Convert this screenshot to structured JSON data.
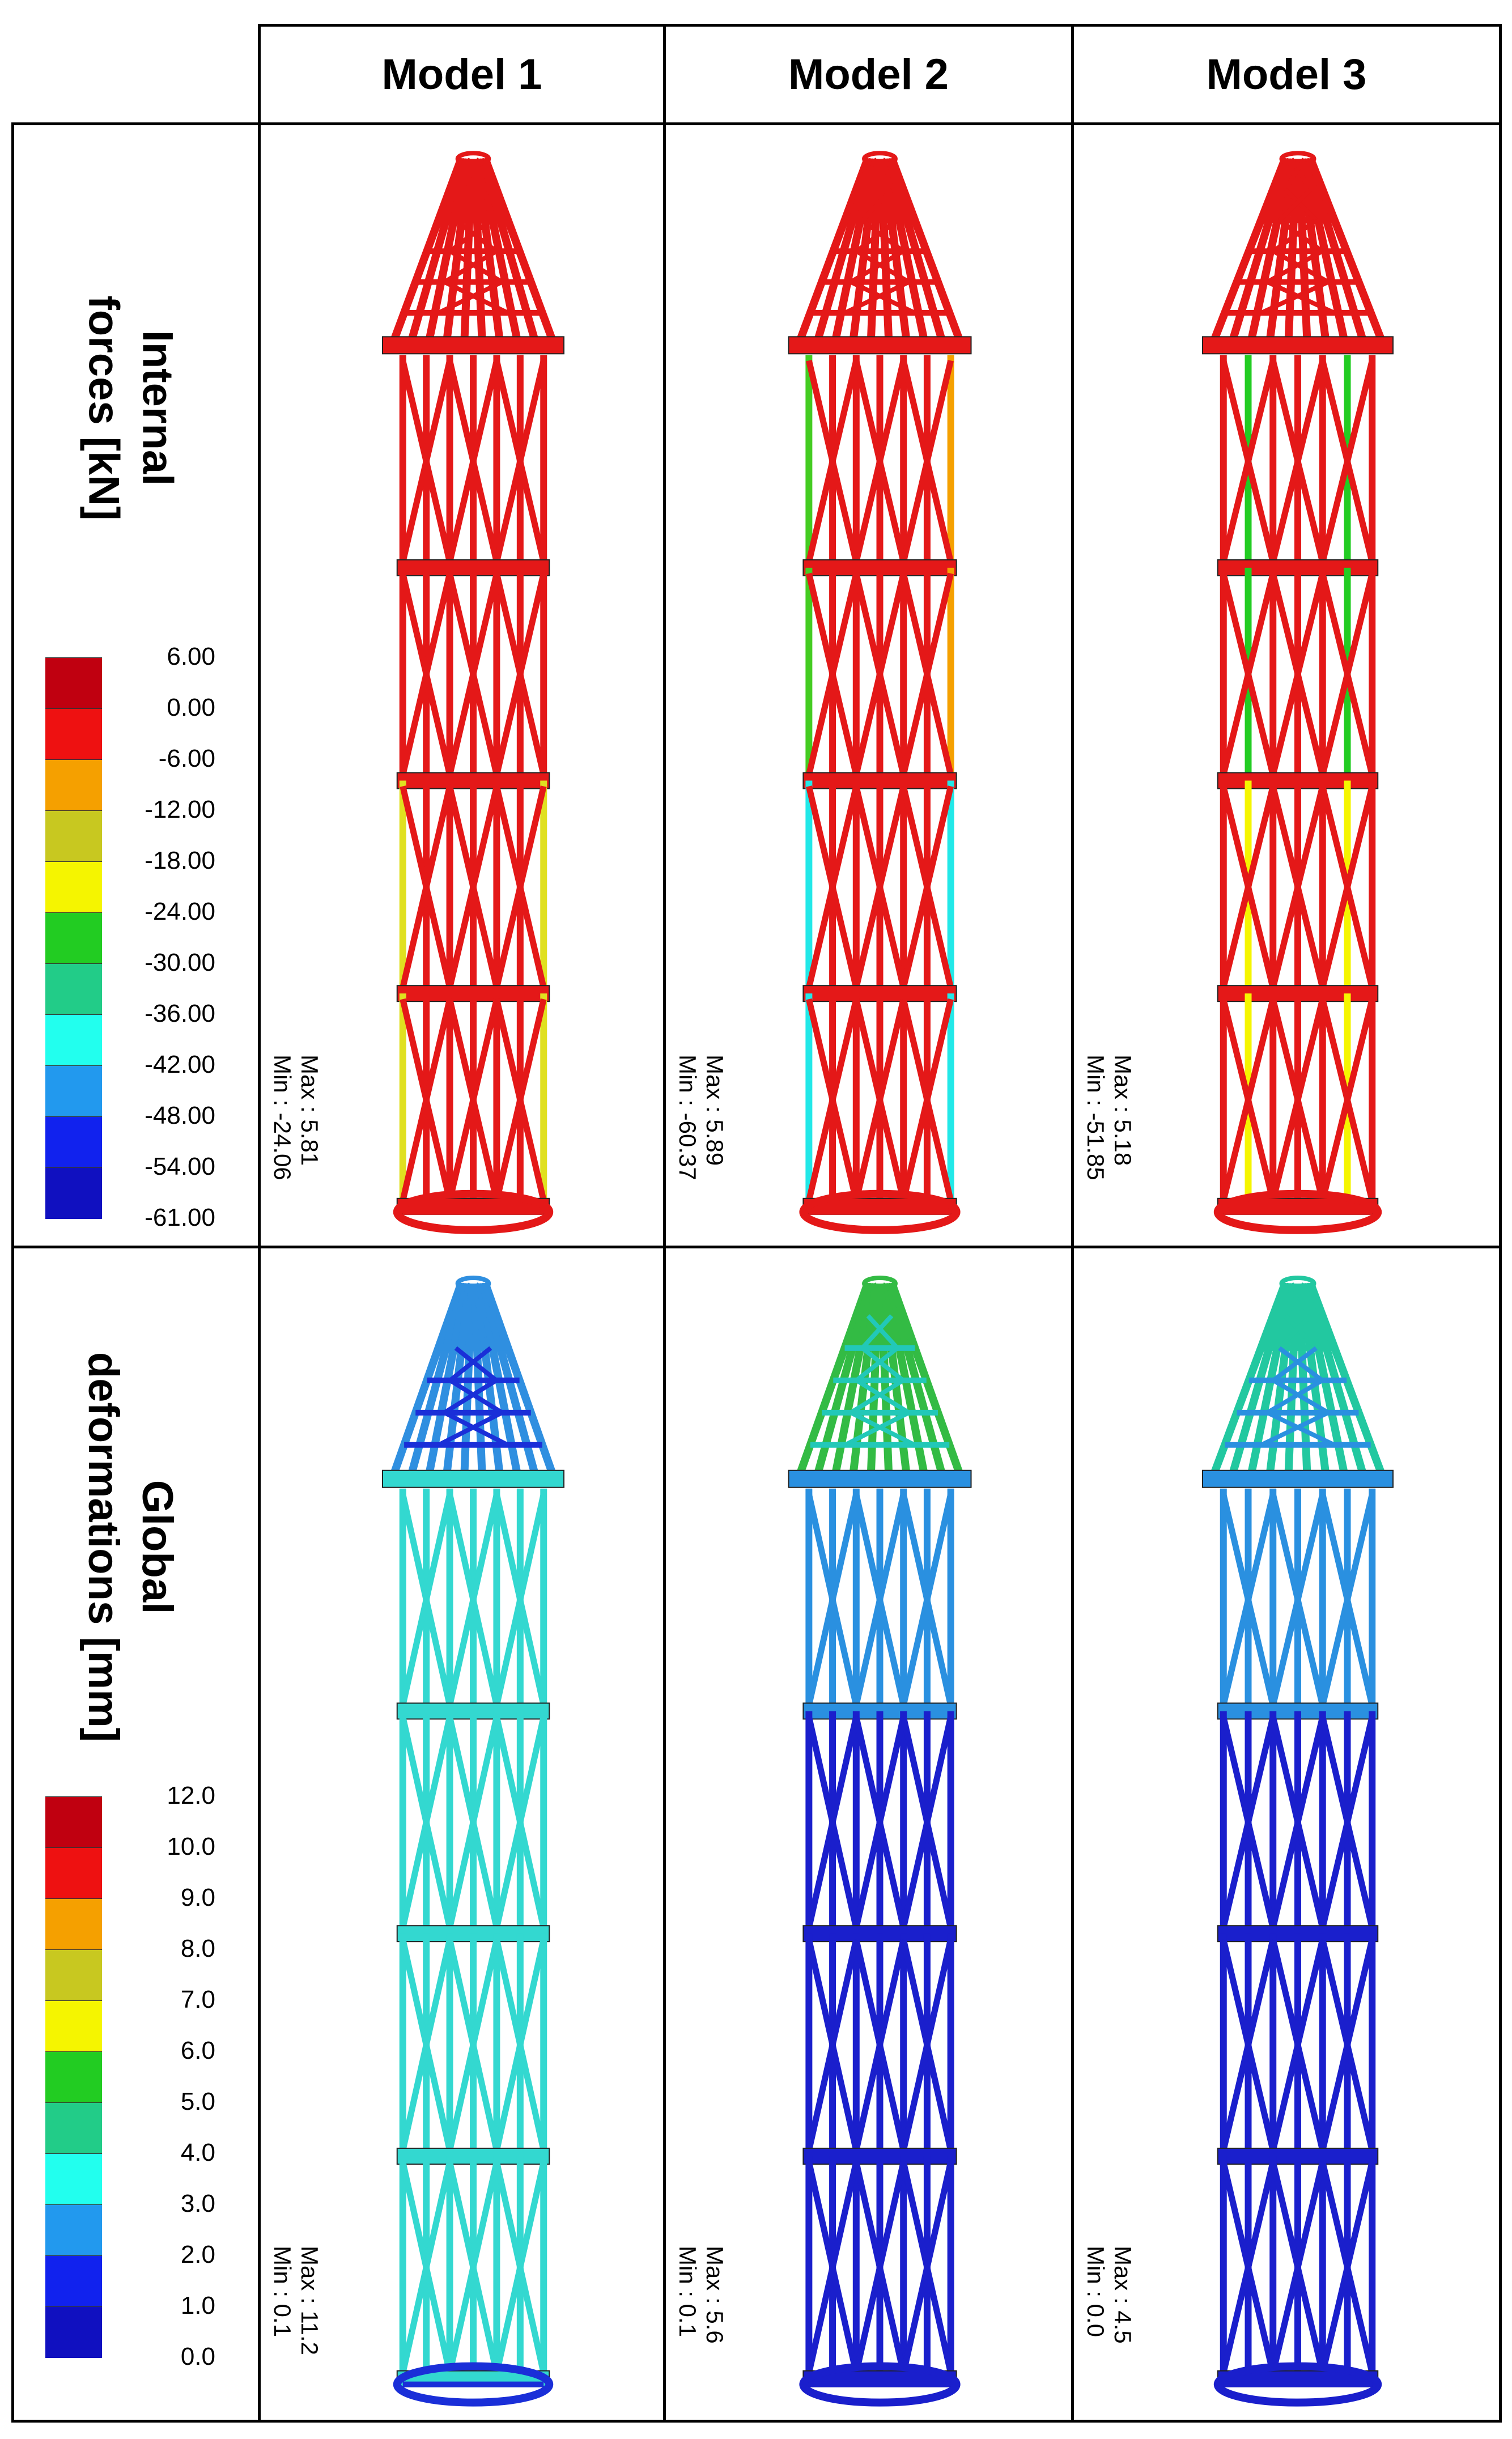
{
  "headers": {
    "model1": "Model 1",
    "model2": "Model 2",
    "model3": "Model 3"
  },
  "rows": {
    "forces": {
      "label_line1": "Internal",
      "label_line2": "forces [kN]"
    },
    "deformations": {
      "label_line1": "Global",
      "label_line2": "deformations [mm]"
    }
  },
  "legends": {
    "forces": {
      "values": [
        "6.00",
        "0.00",
        "-6.00",
        "-12.00",
        "-18.00",
        "-24.00",
        "-30.00",
        "-36.00",
        "-42.00",
        "-48.00",
        "-54.00",
        "-61.00"
      ],
      "colors": [
        "#c00010",
        "#ee1111",
        "#f5a000",
        "#c8c820",
        "#f5f500",
        "#22cc22",
        "#22cc88",
        "#22ffee",
        "#2299ee",
        "#1122ee",
        "#1010c0"
      ]
    },
    "deformations": {
      "values": [
        "12.0",
        "10.0",
        "9.0",
        "8.0",
        "7.0",
        "6.0",
        "5.0",
        "4.0",
        "3.0",
        "2.0",
        "1.0",
        "0.0"
      ],
      "colors": [
        "#c00010",
        "#ee1111",
        "#f5a000",
        "#c8c820",
        "#f5f500",
        "#22cc22",
        "#22cc88",
        "#22ffee",
        "#2299ee",
        "#1122ee",
        "#1010c0"
      ]
    }
  },
  "forces_panels": [
    {
      "max": "Max :   5.81",
      "min": "Min : -24.06"
    },
    {
      "max": "Max :   5.89",
      "min": "Min : -60.37"
    },
    {
      "max": "Max :   5.18",
      "min": "Min : -51.85"
    }
  ],
  "deformation_panels": [
    {
      "max": "Max : 11.2",
      "min": "Min :   0.1"
    },
    {
      "max": "Max : 5.6",
      "min": "Min :  0.1"
    },
    {
      "max": "Max : 4.5",
      "min": "Min :  0.0"
    }
  ],
  "colors": {
    "force_main": "#e41818",
    "deform_model1_top": "#2f8fe0",
    "deform_model1_mid": "#1a2fd8",
    "deform_model1_body": "#33d8d0",
    "deform_model2_top": "#33bb44",
    "deform_model2_mid": "#22c8b8",
    "deform_model2_body": "#1a1fcc",
    "deform_model3_top": "#22c8a0",
    "deform_model3_mid": "#2a90e0",
    "deform_model3_body": "#1a1fcc"
  }
}
